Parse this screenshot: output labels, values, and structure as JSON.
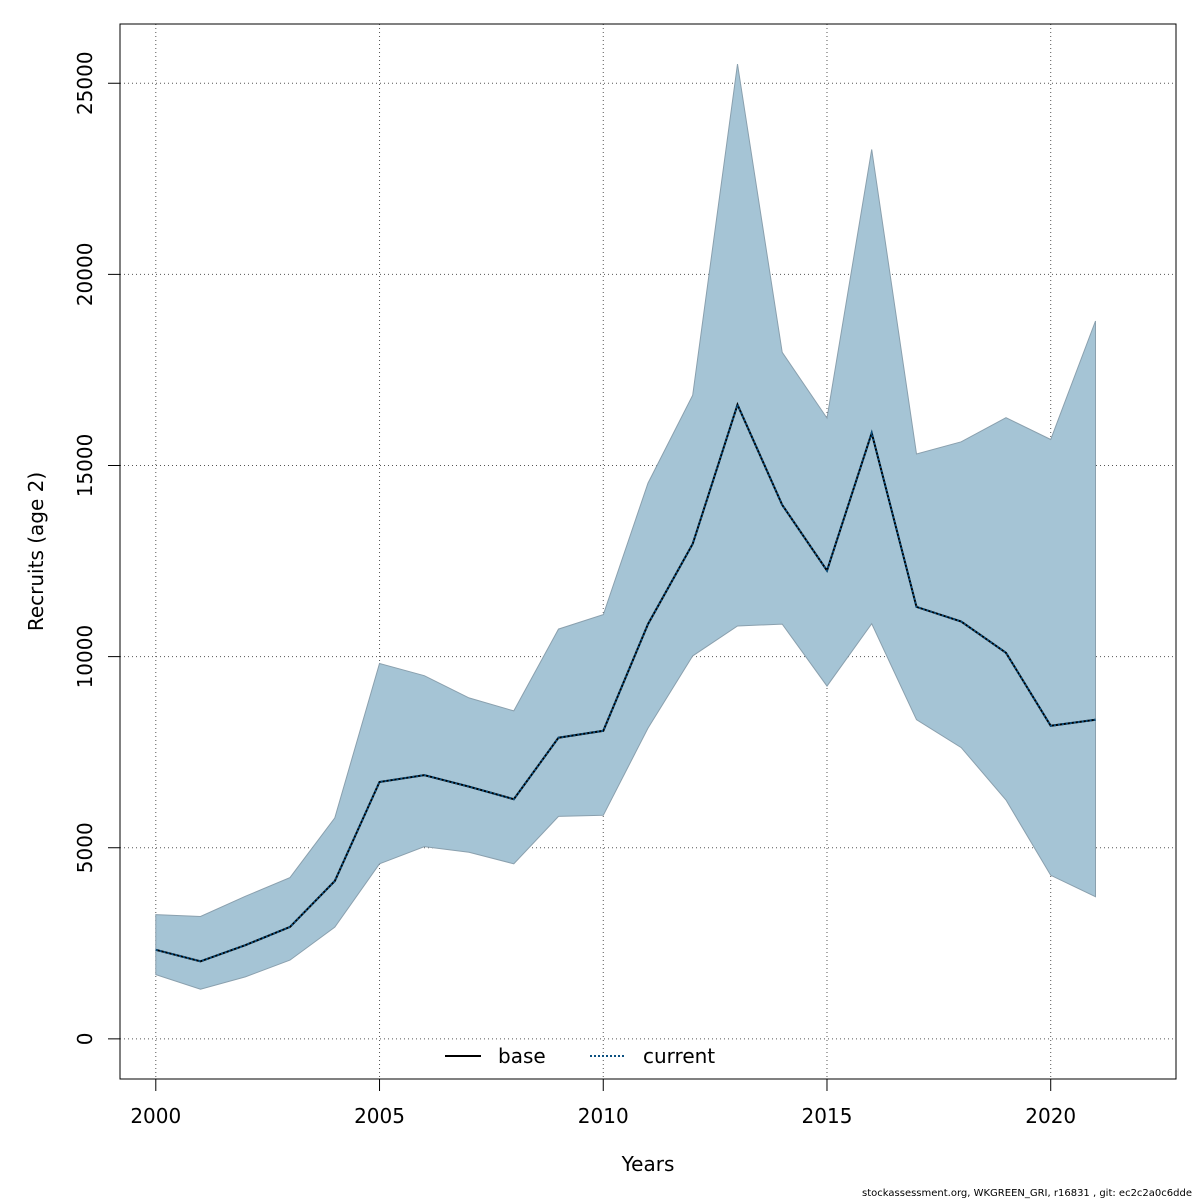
{
  "chart_data": {
    "type": "area",
    "xlabel": "Years",
    "ylabel": "Recruits (age 2)",
    "xlim": [
      1999.2,
      2022.8
    ],
    "ylim": [
      -1050,
      26550
    ],
    "x_ticks": [
      2000,
      2005,
      2010,
      2015,
      2020
    ],
    "y_ticks": [
      0,
      5000,
      10000,
      15000,
      20000,
      25000
    ],
    "grid": true,
    "legend_placement": "bottom",
    "x": [
      2000,
      2001,
      2002,
      2003,
      2004,
      2005,
      2006,
      2007,
      2008,
      2009,
      2010,
      2011,
      2012,
      2013,
      2014,
      2015,
      2016,
      2017,
      2018,
      2019,
      2020,
      2021
    ],
    "band": {
      "upper": [
        3250,
        3200,
        3730,
        4220,
        5780,
        9820,
        9500,
        8920,
        8580,
        10720,
        11100,
        14540,
        16840,
        25500,
        17960,
        16240,
        23270,
        15300,
        15620,
        16250,
        15680,
        18780
      ],
      "lower": [
        1680,
        1300,
        1620,
        2060,
        2920,
        4580,
        5030,
        4880,
        4580,
        5820,
        5850,
        8130,
        10020,
        10800,
        10850,
        9230,
        10860,
        8350,
        7620,
        6250,
        4280,
        3720
      ],
      "color": "#a5c4d5"
    },
    "series": [
      {
        "name": "base",
        "style": "solid",
        "color": "#000000",
        "values": [
          2330,
          2030,
          2450,
          2930,
          4130,
          6720,
          6900,
          6600,
          6270,
          7880,
          8060,
          10850,
          12950,
          16590,
          13970,
          12250,
          15850,
          11300,
          10920,
          10100,
          8190,
          8350
        ]
      },
      {
        "name": "current",
        "style": "dotted",
        "color": "#0b5080",
        "values": [
          2330,
          2030,
          2450,
          2930,
          4130,
          6720,
          6900,
          6600,
          6270,
          7880,
          8060,
          10850,
          12950,
          16590,
          13970,
          12250,
          15850,
          11300,
          10920,
          10100,
          8190,
          8350
        ]
      }
    ]
  },
  "footer": "stockassessment.org, WKGREEN_GRI, r16831 , git: ec2c2a0c6dde"
}
